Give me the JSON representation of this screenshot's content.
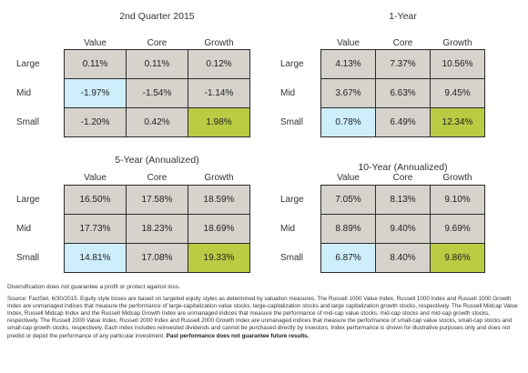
{
  "chart_data": [
    {
      "type": "table",
      "title": "2nd Quarter 2015",
      "columns": [
        "Value",
        "Core",
        "Growth"
      ],
      "rows": [
        "Large",
        "Mid",
        "Small"
      ],
      "values": [
        [
          "0.11%",
          "0.11%",
          "0.12%"
        ],
        [
          "-1.97%",
          "-1.54%",
          "-1.14%"
        ],
        [
          "-1.20%",
          "0.42%",
          "1.98%"
        ]
      ],
      "min_cell": [
        1,
        0
      ],
      "max_cell": [
        2,
        2
      ]
    },
    {
      "type": "table",
      "title": "1-Year",
      "columns": [
        "Value",
        "Core",
        "Growth"
      ],
      "rows": [
        "Large",
        "Mid",
        "Small"
      ],
      "values": [
        [
          "4.13%",
          "7.37%",
          "10.56%"
        ],
        [
          "3.67%",
          "6.63%",
          "9.45%"
        ],
        [
          "0.78%",
          "6.49%",
          "12.34%"
        ]
      ],
      "min_cell": [
        2,
        0
      ],
      "max_cell": [
        2,
        2
      ]
    },
    {
      "type": "table",
      "title": "5-Year (Annualized)",
      "columns": [
        "Value",
        "Core",
        "Growth"
      ],
      "rows": [
        "Large",
        "Mid",
        "Small"
      ],
      "values": [
        [
          "16.50%",
          "17.58%",
          "18.59%"
        ],
        [
          "17.73%",
          "18.23%",
          "18.69%"
        ],
        [
          "14.81%",
          "17.08%",
          "19.33%"
        ]
      ],
      "min_cell": [
        2,
        0
      ],
      "max_cell": [
        2,
        2
      ]
    },
    {
      "type": "table",
      "title": "10-Year (Annualized)",
      "columns": [
        "Value",
        "Core",
        "Growth"
      ],
      "rows": [
        "Large",
        "Mid",
        "Small"
      ],
      "values": [
        [
          "7.05%",
          "8.13%",
          "9.10%"
        ],
        [
          "8.89%",
          "9.40%",
          "9.69%"
        ],
        [
          "6.87%",
          "8.40%",
          "9.86%"
        ]
      ],
      "min_cell": [
        2,
        0
      ],
      "max_cell": [
        2,
        2
      ]
    }
  ],
  "colors": {
    "default_cell": "#d6d3cd",
    "lowest_cell": "#cdeefa",
    "highest_cell": "#b9cc43",
    "grid_border": "#2b2b2b"
  },
  "notes": {
    "disclaimer": "Diversification does not guarantee a profit or protect against loss.",
    "source": "Source: FactSet, 6/30/2015. Equity style boxes are based on targeted equity styles as determined by valuation measures. The Russell 1000 Value Index, Russell 1000 Index and Russell 1000 Growth Index are unmanaged indices that measure the performance of large-capitalization value stocks, large-capitalization stocks and large capitalization growth stocks, respectively. The Russell Midcap Value Index, Russell Midcap Index and the Russell Midcap Growth Index are unmanaged indices that measure the performance of mid-cap value stocks, mid-cap stocks and mid-cap growth stocks, respectively. The Russell 2000 Value Index, Russell 2000 Index and Russell 2000 Growth Index are unmanaged indices that measure the performance of small-cap value stocks, small-cap stocks and small-cap growth stocks, respectively. Each index includes reinvested dividends and cannot be purchased directly by investors. Index performance is shown for illustrative purposes only and does not predict or depict the performance of any particular investment.",
    "emphasis": "Past performance does not guarantee future results."
  }
}
